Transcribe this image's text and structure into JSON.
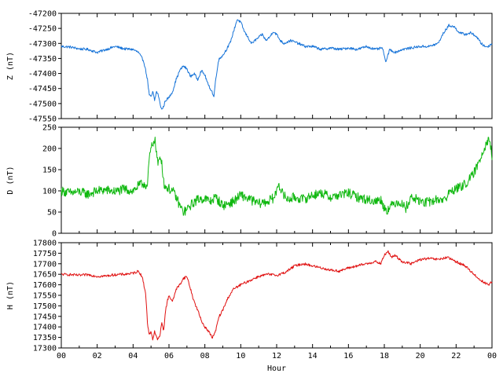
{
  "chart_data": [
    {
      "type": "line",
      "title": "",
      "xlabel": "",
      "ylabel": "Z (nT)",
      "xlim": [
        0,
        24
      ],
      "ylim": [
        -47550,
        -47200
      ],
      "yticks": [
        -47550,
        -47500,
        -47450,
        -47400,
        -47350,
        -47300,
        -47250,
        -47200
      ],
      "color": "#1874d8",
      "series": [
        {
          "x": [
            0,
            0.5,
            1,
            1.5,
            2,
            2.5,
            3,
            3.5,
            4,
            4.3,
            4.6,
            4.8,
            4.9,
            5.0,
            5.1,
            5.2,
            5.3,
            5.4,
            5.5,
            5.6,
            5.7,
            5.8,
            6.0,
            6.2,
            6.4,
            6.6,
            6.8,
            7.0,
            7.2,
            7.4,
            7.6,
            7.8,
            8.0,
            8.2,
            8.4,
            8.5,
            8.6,
            8.7,
            8.8,
            9.0,
            9.2,
            9.4,
            9.6,
            9.8,
            10.0,
            10.2,
            10.4,
            10.6,
            10.8,
            11.0,
            11.2,
            11.4,
            11.6,
            11.8,
            12.0,
            12.2,
            12.4,
            12.8,
            13.2,
            13.6,
            14.0,
            14.5,
            15.0,
            15.5,
            16.0,
            16.5,
            17.0,
            17.5,
            17.9,
            18.0,
            18.1,
            18.3,
            18.6,
            19.0,
            19.5,
            20.0,
            20.5,
            21.0,
            21.3,
            21.6,
            21.9,
            22.2,
            22.5,
            22.8,
            23.1,
            23.4,
            23.6,
            23.8,
            24.0
          ],
          "y": [
            -47310,
            -47312,
            -47318,
            -47320,
            -47330,
            -47320,
            -47310,
            -47318,
            -47320,
            -47330,
            -47360,
            -47420,
            -47470,
            -47480,
            -47460,
            -47490,
            -47460,
            -47470,
            -47500,
            -47520,
            -47510,
            -47490,
            -47480,
            -47460,
            -47420,
            -47390,
            -47375,
            -47385,
            -47410,
            -47400,
            -47420,
            -47390,
            -47405,
            -47440,
            -47460,
            -47480,
            -47420,
            -47380,
            -47350,
            -47340,
            -47320,
            -47300,
            -47260,
            -47220,
            -47230,
            -47260,
            -47280,
            -47300,
            -47290,
            -47280,
            -47270,
            -47290,
            -47280,
            -47260,
            -47270,
            -47290,
            -47300,
            -47290,
            -47300,
            -47310,
            -47310,
            -47320,
            -47315,
            -47320,
            -47315,
            -47320,
            -47310,
            -47320,
            -47315,
            -47345,
            -47360,
            -47320,
            -47330,
            -47320,
            -47315,
            -47310,
            -47310,
            -47300,
            -47265,
            -47240,
            -47245,
            -47265,
            -47270,
            -47265,
            -47275,
            -47300,
            -47310,
            -47310,
            -47300
          ]
        }
      ]
    },
    {
      "type": "line",
      "title": "",
      "xlabel": "",
      "ylabel": "D (nT)",
      "xlim": [
        0,
        24
      ],
      "ylim": [
        0,
        250
      ],
      "yticks": [
        0,
        50,
        100,
        150,
        200,
        250
      ],
      "color": "#10b810",
      "series": [
        {
          "x": [
            0,
            0.5,
            1,
            1.5,
            2,
            2.5,
            3,
            3.5,
            4,
            4.3,
            4.6,
            4.8,
            4.9,
            5.0,
            5.1,
            5.2,
            5.3,
            5.4,
            5.5,
            5.6,
            5.7,
            5.8,
            6.0,
            6.2,
            6.4,
            6.6,
            6.8,
            7.0,
            7.3,
            7.6,
            8.0,
            8.3,
            8.6,
            9.0,
            9.3,
            9.6,
            10.0,
            10.5,
            11.0,
            11.5,
            11.9,
            12.1,
            12.3,
            12.6,
            13.0,
            13.5,
            14.0,
            14.5,
            15.0,
            15.5,
            16.0,
            16.5,
            17.0,
            17.5,
            17.8,
            18.0,
            18.2,
            18.5,
            18.8,
            19.2,
            19.5,
            19.8,
            20.2,
            20.6,
            21.0,
            21.4,
            21.7,
            22.0,
            22.3,
            22.6,
            22.9,
            23.2,
            23.5,
            23.7,
            23.85,
            24.0
          ],
          "y": [
            100,
            95,
            98,
            92,
            100,
            102,
            98,
            104,
            100,
            112,
            118,
            110,
            175,
            200,
            210,
            225,
            190,
            160,
            180,
            170,
            120,
            110,
            105,
            100,
            85,
            65,
            50,
            55,
            70,
            80,
            82,
            75,
            85,
            65,
            70,
            75,
            90,
            80,
            70,
            75,
            85,
            120,
            95,
            80,
            85,
            80,
            90,
            95,
            85,
            90,
            95,
            85,
            80,
            75,
            80,
            60,
            55,
            70,
            75,
            60,
            85,
            80,
            72,
            75,
            80,
            80,
            100,
            105,
            110,
            120,
            135,
            160,
            195,
            215,
            225,
            180
          ]
        }
      ]
    },
    {
      "type": "line",
      "title": "",
      "xlabel": "Hour",
      "ylabel": "H (nT)",
      "xlim": [
        0,
        24
      ],
      "ylim": [
        17300,
        17800
      ],
      "yticks": [
        17300,
        17350,
        17400,
        17450,
        17500,
        17550,
        17600,
        17650,
        17700,
        17750,
        17800
      ],
      "xticklabels": [
        "00",
        "02",
        "04",
        "06",
        "08",
        "10",
        "12",
        "14",
        "16",
        "18",
        "20",
        "22",
        "00"
      ],
      "color": "#e01010",
      "series": [
        {
          "x": [
            0,
            0.5,
            1,
            1.5,
            2,
            2.5,
            3,
            3.5,
            4,
            4.3,
            4.5,
            4.7,
            4.8,
            4.9,
            5.0,
            5.1,
            5.2,
            5.3,
            5.4,
            5.5,
            5.6,
            5.7,
            5.8,
            5.9,
            6.0,
            6.2,
            6.4,
            6.6,
            6.8,
            7.0,
            7.2,
            7.4,
            7.6,
            7.8,
            8.0,
            8.2,
            8.4,
            8.5,
            8.6,
            8.7,
            8.8,
            9.0,
            9.3,
            9.6,
            10.0,
            10.5,
            11.0,
            11.5,
            12.0,
            12.5,
            13.0,
            13.5,
            14.0,
            14.5,
            15.0,
            15.5,
            16.0,
            16.5,
            17.0,
            17.5,
            17.8,
            18.0,
            18.2,
            18.4,
            18.6,
            19.0,
            19.5,
            20.0,
            20.5,
            21.0,
            21.5,
            22.0,
            22.5,
            23.0,
            23.3,
            23.6,
            23.8,
            24.0
          ],
          "y": [
            17650,
            17648,
            17645,
            17648,
            17640,
            17642,
            17648,
            17650,
            17655,
            17665,
            17640,
            17560,
            17420,
            17360,
            17380,
            17340,
            17380,
            17350,
            17340,
            17360,
            17420,
            17380,
            17470,
            17520,
            17550,
            17520,
            17580,
            17600,
            17630,
            17640,
            17580,
            17520,
            17480,
            17430,
            17400,
            17380,
            17350,
            17360,
            17380,
            17420,
            17450,
            17480,
            17540,
            17580,
            17600,
            17620,
            17640,
            17650,
            17645,
            17660,
            17690,
            17700,
            17690,
            17680,
            17670,
            17665,
            17680,
            17690,
            17700,
            17710,
            17700,
            17740,
            17760,
            17730,
            17740,
            17710,
            17700,
            17720,
            17725,
            17720,
            17730,
            17710,
            17690,
            17650,
            17625,
            17610,
            17600,
            17615
          ]
        }
      ]
    }
  ]
}
